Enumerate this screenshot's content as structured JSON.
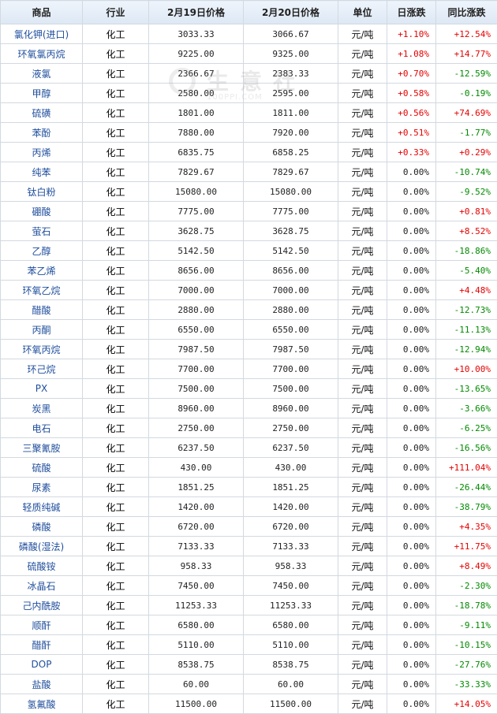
{
  "columns": [
    "商品",
    "行业",
    "2月19日价格",
    "2月20日价格",
    "单位",
    "日涨跌",
    "同比涨跌"
  ],
  "watermark": {
    "text": "生意社",
    "url": "100PPI.COM"
  },
  "rows": [
    {
      "name": "氯化钾(进口)",
      "industry": "化工",
      "p1": "3033.33",
      "p2": "3066.67",
      "unit": "元/吨",
      "day": "+1.10%",
      "yoy": "+12.54%"
    },
    {
      "name": "环氧氯丙烷",
      "industry": "化工",
      "p1": "9225.00",
      "p2": "9325.00",
      "unit": "元/吨",
      "day": "+1.08%",
      "yoy": "+14.77%"
    },
    {
      "name": "液氯",
      "industry": "化工",
      "p1": "2366.67",
      "p2": "2383.33",
      "unit": "元/吨",
      "day": "+0.70%",
      "yoy": "-12.59%"
    },
    {
      "name": "甲醇",
      "industry": "化工",
      "p1": "2580.00",
      "p2": "2595.00",
      "unit": "元/吨",
      "day": "+0.58%",
      "yoy": "-0.19%"
    },
    {
      "name": "硫磺",
      "industry": "化工",
      "p1": "1801.00",
      "p2": "1811.00",
      "unit": "元/吨",
      "day": "+0.56%",
      "yoy": "+74.69%"
    },
    {
      "name": "苯酚",
      "industry": "化工",
      "p1": "7880.00",
      "p2": "7920.00",
      "unit": "元/吨",
      "day": "+0.51%",
      "yoy": "-1.77%"
    },
    {
      "name": "丙烯",
      "industry": "化工",
      "p1": "6835.75",
      "p2": "6858.25",
      "unit": "元/吨",
      "day": "+0.33%",
      "yoy": "+0.29%"
    },
    {
      "name": "纯苯",
      "industry": "化工",
      "p1": "7829.67",
      "p2": "7829.67",
      "unit": "元/吨",
      "day": "0.00%",
      "yoy": "-10.74%"
    },
    {
      "name": "钛白粉",
      "industry": "化工",
      "p1": "15080.00",
      "p2": "15080.00",
      "unit": "元/吨",
      "day": "0.00%",
      "yoy": "-9.52%"
    },
    {
      "name": "硼酸",
      "industry": "化工",
      "p1": "7775.00",
      "p2": "7775.00",
      "unit": "元/吨",
      "day": "0.00%",
      "yoy": "+0.81%"
    },
    {
      "name": "萤石",
      "industry": "化工",
      "p1": "3628.75",
      "p2": "3628.75",
      "unit": "元/吨",
      "day": "0.00%",
      "yoy": "+8.52%"
    },
    {
      "name": "乙醇",
      "industry": "化工",
      "p1": "5142.50",
      "p2": "5142.50",
      "unit": "元/吨",
      "day": "0.00%",
      "yoy": "-18.86%"
    },
    {
      "name": "苯乙烯",
      "industry": "化工",
      "p1": "8656.00",
      "p2": "8656.00",
      "unit": "元/吨",
      "day": "0.00%",
      "yoy": "-5.40%"
    },
    {
      "name": "环氧乙烷",
      "industry": "化工",
      "p1": "7000.00",
      "p2": "7000.00",
      "unit": "元/吨",
      "day": "0.00%",
      "yoy": "+4.48%"
    },
    {
      "name": "醋酸",
      "industry": "化工",
      "p1": "2880.00",
      "p2": "2880.00",
      "unit": "元/吨",
      "day": "0.00%",
      "yoy": "-12.73%"
    },
    {
      "name": "丙酮",
      "industry": "化工",
      "p1": "6550.00",
      "p2": "6550.00",
      "unit": "元/吨",
      "day": "0.00%",
      "yoy": "-11.13%"
    },
    {
      "name": "环氧丙烷",
      "industry": "化工",
      "p1": "7987.50",
      "p2": "7987.50",
      "unit": "元/吨",
      "day": "0.00%",
      "yoy": "-12.94%"
    },
    {
      "name": "环己烷",
      "industry": "化工",
      "p1": "7700.00",
      "p2": "7700.00",
      "unit": "元/吨",
      "day": "0.00%",
      "yoy": "+10.00%"
    },
    {
      "name": "PX",
      "industry": "化工",
      "p1": "7500.00",
      "p2": "7500.00",
      "unit": "元/吨",
      "day": "0.00%",
      "yoy": "-13.65%"
    },
    {
      "name": "炭黑",
      "industry": "化工",
      "p1": "8960.00",
      "p2": "8960.00",
      "unit": "元/吨",
      "day": "0.00%",
      "yoy": "-3.66%"
    },
    {
      "name": "电石",
      "industry": "化工",
      "p1": "2750.00",
      "p2": "2750.00",
      "unit": "元/吨",
      "day": "0.00%",
      "yoy": "-6.25%"
    },
    {
      "name": "三聚氰胺",
      "industry": "化工",
      "p1": "6237.50",
      "p2": "6237.50",
      "unit": "元/吨",
      "day": "0.00%",
      "yoy": "-16.56%"
    },
    {
      "name": "硫酸",
      "industry": "化工",
      "p1": "430.00",
      "p2": "430.00",
      "unit": "元/吨",
      "day": "0.00%",
      "yoy": "+111.04%"
    },
    {
      "name": "尿素",
      "industry": "化工",
      "p1": "1851.25",
      "p2": "1851.25",
      "unit": "元/吨",
      "day": "0.00%",
      "yoy": "-26.44%"
    },
    {
      "name": "轻质纯碱",
      "industry": "化工",
      "p1": "1420.00",
      "p2": "1420.00",
      "unit": "元/吨",
      "day": "0.00%",
      "yoy": "-38.79%"
    },
    {
      "name": "磷酸",
      "industry": "化工",
      "p1": "6720.00",
      "p2": "6720.00",
      "unit": "元/吨",
      "day": "0.00%",
      "yoy": "+4.35%"
    },
    {
      "name": "磷酸(湿法)",
      "industry": "化工",
      "p1": "7133.33",
      "p2": "7133.33",
      "unit": "元/吨",
      "day": "0.00%",
      "yoy": "+11.75%"
    },
    {
      "name": "硫酸铵",
      "industry": "化工",
      "p1": "958.33",
      "p2": "958.33",
      "unit": "元/吨",
      "day": "0.00%",
      "yoy": "+8.49%"
    },
    {
      "name": "冰晶石",
      "industry": "化工",
      "p1": "7450.00",
      "p2": "7450.00",
      "unit": "元/吨",
      "day": "0.00%",
      "yoy": "-2.30%"
    },
    {
      "name": "己内酰胺",
      "industry": "化工",
      "p1": "11253.33",
      "p2": "11253.33",
      "unit": "元/吨",
      "day": "0.00%",
      "yoy": "-18.78%"
    },
    {
      "name": "顺酐",
      "industry": "化工",
      "p1": "6580.00",
      "p2": "6580.00",
      "unit": "元/吨",
      "day": "0.00%",
      "yoy": "-9.11%"
    },
    {
      "name": "醋酐",
      "industry": "化工",
      "p1": "5110.00",
      "p2": "5110.00",
      "unit": "元/吨",
      "day": "0.00%",
      "yoy": "-10.15%"
    },
    {
      "name": "DOP",
      "industry": "化工",
      "p1": "8538.75",
      "p2": "8538.75",
      "unit": "元/吨",
      "day": "0.00%",
      "yoy": "-27.76%"
    },
    {
      "name": "盐酸",
      "industry": "化工",
      "p1": "60.00",
      "p2": "60.00",
      "unit": "元/吨",
      "day": "0.00%",
      "yoy": "-33.33%"
    },
    {
      "name": "氢氟酸",
      "industry": "化工",
      "p1": "11500.00",
      "p2": "11500.00",
      "unit": "元/吨",
      "day": "0.00%",
      "yoy": "+14.05%"
    }
  ]
}
